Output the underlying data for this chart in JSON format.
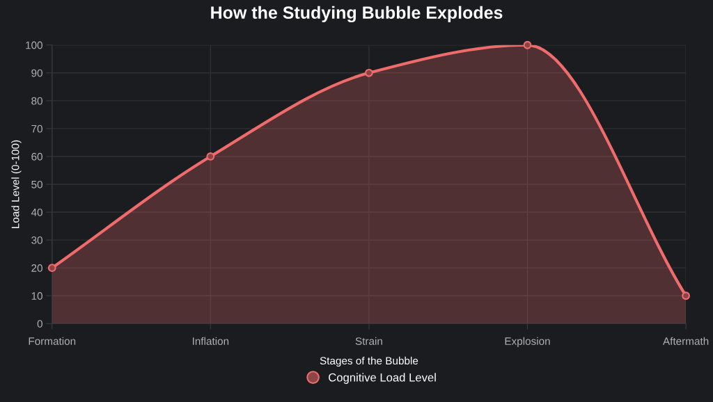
{
  "chart_data": {
    "type": "area",
    "title": "How the Studying Bubble Explodes",
    "xlabel": "Stages of the Bubble",
    "ylabel": "Load Level (0-100)",
    "categories": [
      "Formation",
      "Inflation",
      "Strain",
      "Explosion",
      "Aftermath"
    ],
    "series": [
      {
        "name": "Cognitive Load Level",
        "color": "#f06b6b",
        "values": [
          20,
          60,
          90,
          100,
          10
        ]
      }
    ],
    "ylim": [
      0,
      100
    ],
    "yticks": [
      0,
      10,
      20,
      30,
      40,
      50,
      60,
      70,
      80,
      90,
      100
    ],
    "grid": true,
    "legend": "bottom",
    "marker": "circle",
    "line_style": "solid"
  }
}
